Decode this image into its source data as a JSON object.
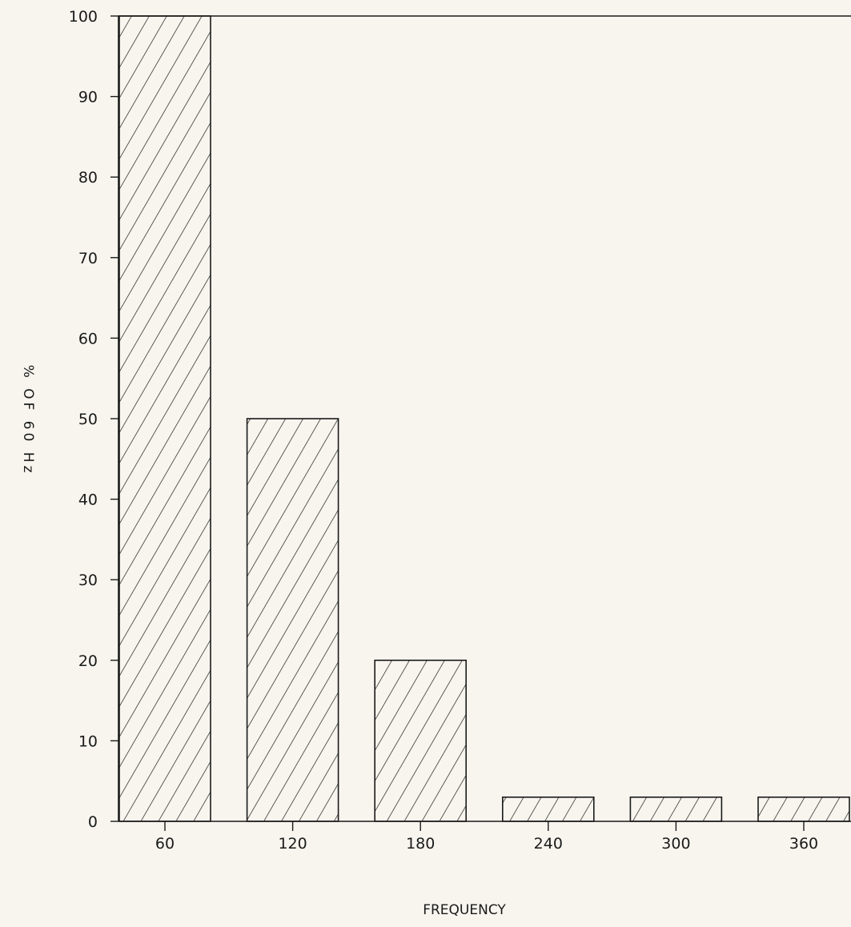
{
  "chart_data": {
    "type": "bar",
    "title": "",
    "xlabel": "FREQUENCY",
    "ylabel": "% OF 60 Hz",
    "categories": [
      "60",
      "120",
      "180",
      "240",
      "300",
      "360"
    ],
    "values": [
      100,
      50,
      20,
      3,
      3,
      3
    ],
    "ylim": [
      0,
      100
    ],
    "yticks": [
      "0",
      "10",
      "20",
      "30",
      "40",
      "50",
      "60",
      "70",
      "80",
      "90",
      "100"
    ],
    "grid": false,
    "bar_fill": "diagonal-hatch",
    "colors": {
      "ink": "#1a1a1a",
      "background": "#f7f5ee"
    }
  }
}
